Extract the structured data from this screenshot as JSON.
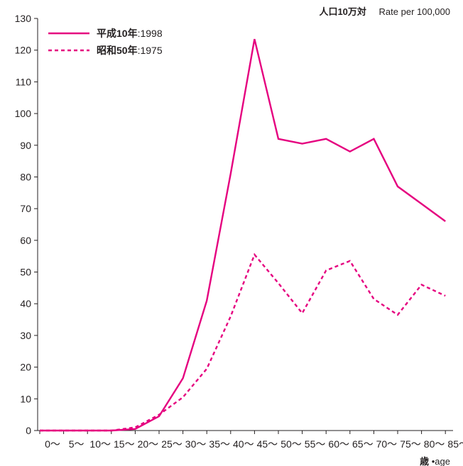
{
  "chart_data": {
    "type": "line",
    "unit_label_jp": "人口10万対",
    "unit_label_en": "Rate per 100,000",
    "xlabel_jp": "歳",
    "xlabel_en": "•age",
    "categories": [
      "0～",
      "5～",
      "10～",
      "15～",
      "20～",
      "25～",
      "30～",
      "35～",
      "40～",
      "45～",
      "50～",
      "55～",
      "60～",
      "65～",
      "70～",
      "75～",
      "80～",
      "85～"
    ],
    "ylim": [
      0,
      130
    ],
    "yticks": [
      0,
      10,
      20,
      30,
      40,
      50,
      60,
      70,
      80,
      90,
      100,
      110,
      120,
      130
    ],
    "grid": false,
    "legend_position": "top-left",
    "colors": {
      "series": "#e5007f",
      "axis": "#231f20"
    },
    "series": [
      {
        "name_jp": "平成10年",
        "name_en": ":1998",
        "style": "solid",
        "values": [
          0,
          0,
          0,
          0,
          0.5,
          4.5,
          16.5,
          41,
          81,
          123.5,
          92,
          90.5,
          92,
          88,
          92,
          77,
          71.5,
          66
        ]
      },
      {
        "name_jp": "昭和50年",
        "name_en": ":1975",
        "style": "dashed",
        "values": [
          0,
          0,
          0,
          0,
          1,
          5,
          10.5,
          19.5,
          36,
          55.5,
          46.5,
          37,
          50.5,
          53.5,
          41.5,
          36.5,
          46,
          42.5
        ]
      }
    ]
  }
}
